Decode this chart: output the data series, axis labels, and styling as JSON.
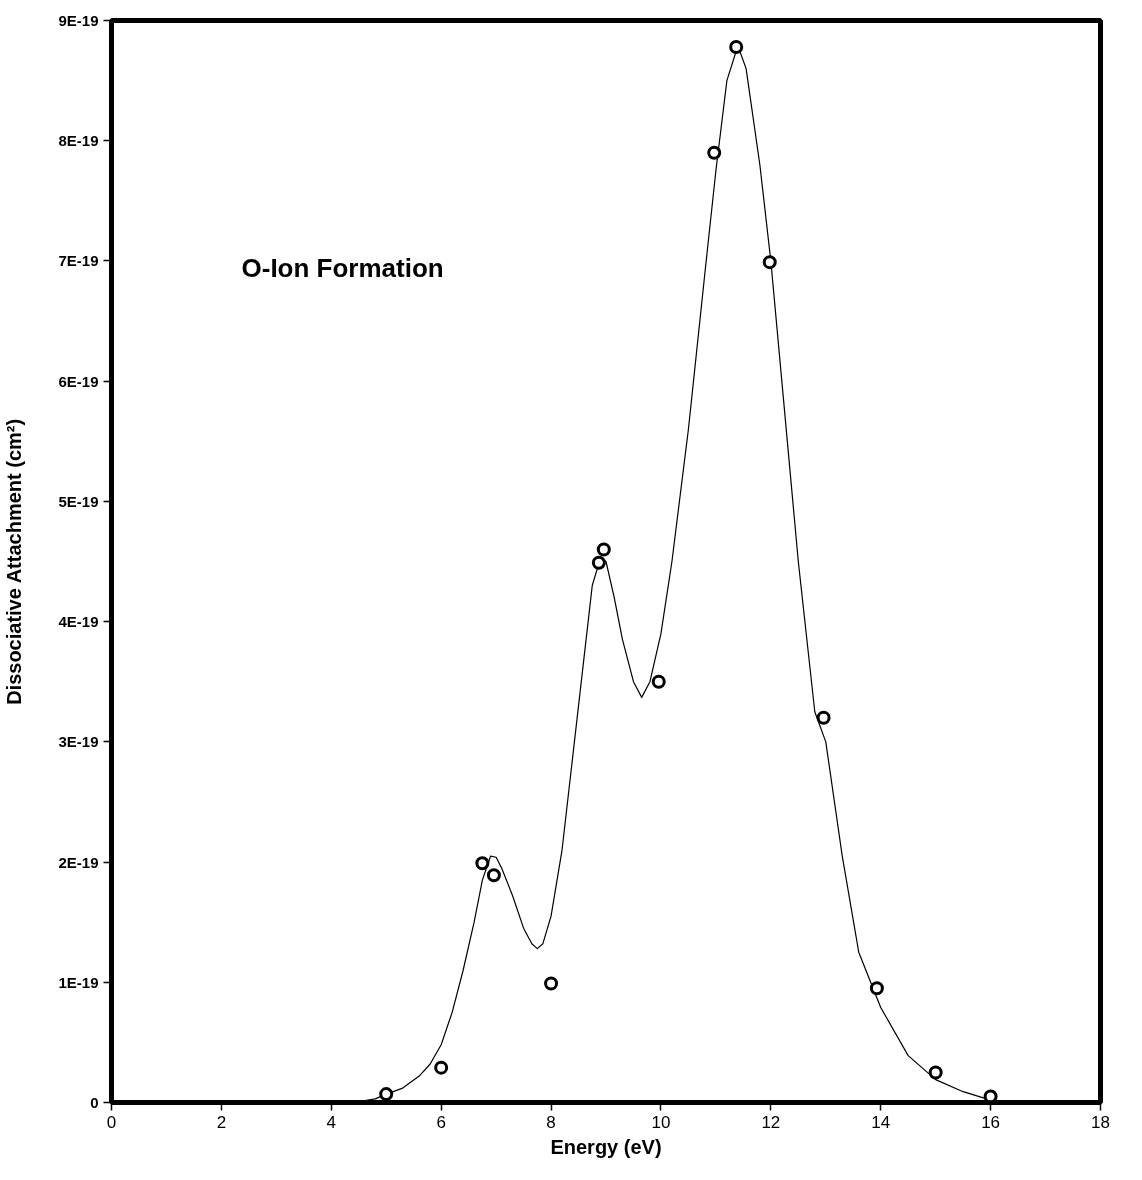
{
  "chart_data": {
    "type": "scatter",
    "xlabel": "Energy (eV)",
    "ylabel": "Dissociative Attachment (cm²)",
    "annotations": [
      "O-Ion Formation"
    ],
    "xlim": [
      0,
      18
    ],
    "xticks": [
      0,
      2,
      4,
      6,
      8,
      10,
      12,
      14,
      16,
      18
    ],
    "ylim": [
      0,
      9e-19
    ],
    "yticks": [
      {
        "value": 0,
        "label": "0"
      },
      {
        "value": 1e-19,
        "label": "1E-19"
      },
      {
        "value": 2e-19,
        "label": "2E-19"
      },
      {
        "value": 3e-19,
        "label": "3E-19"
      },
      {
        "value": 4e-19,
        "label": "4E-19"
      },
      {
        "value": 5e-19,
        "label": "5E-19"
      },
      {
        "value": 6e-19,
        "label": "6E-19"
      },
      {
        "value": 7e-19,
        "label": "7E-19"
      },
      {
        "value": 8e-19,
        "label": "8E-19"
      },
      {
        "value": 9e-19,
        "label": "9E-19"
      }
    ],
    "grid": false,
    "marker": "circle",
    "series": [
      {
        "type": "line",
        "color": "#000000",
        "marker": "none",
        "line_style": "solid",
        "x": [
          4.4,
          4.8,
          5.0,
          5.3,
          5.6,
          5.8,
          6.0,
          6.2,
          6.4,
          6.6,
          6.75,
          6.9,
          7.0,
          7.1,
          7.3,
          7.5,
          7.65,
          7.75,
          7.85,
          8.0,
          8.2,
          8.4,
          8.6,
          8.75,
          8.9,
          9.0,
          9.15,
          9.3,
          9.5,
          9.65,
          9.8,
          10.0,
          10.2,
          10.5,
          10.8,
          11.0,
          11.2,
          11.4,
          11.55,
          11.8,
          12.0,
          12.2,
          12.5,
          12.8,
          13.0,
          13.3,
          13.6,
          14.0,
          14.5,
          15.0,
          15.5,
          16.0,
          16.1
        ],
        "values": [
          0,
          3e-21,
          7e-21,
          1.2e-20,
          2.2e-20,
          3.2e-20,
          4.8e-20,
          7.5e-20,
          1.1e-19,
          1.5e-19,
          1.85e-19,
          2.05e-19,
          2.04e-19,
          1.95e-19,
          1.72e-19,
          1.45e-19,
          1.32e-19,
          1.28e-19,
          1.32e-19,
          1.55e-19,
          2.1e-19,
          2.9e-19,
          3.7e-19,
          4.3e-19,
          4.53e-19,
          4.5e-19,
          4.2e-19,
          3.85e-19,
          3.5e-19,
          3.37e-19,
          3.5e-19,
          3.9e-19,
          4.5e-19,
          5.6e-19,
          6.9e-19,
          7.75e-19,
          8.5e-19,
          8.79e-19,
          8.6e-19,
          7.8e-19,
          7e-19,
          6e-19,
          4.5e-19,
          3.25e-19,
          3e-19,
          2.05e-19,
          1.25e-19,
          7.9e-20,
          3.9e-20,
          1.9e-20,
          9e-21,
          2e-21,
          0
        ]
      },
      {
        "color": "#000000",
        "x": [
          5,
          6,
          6.75,
          6.96,
          8,
          8.87,
          8.96,
          9.96,
          10.97,
          11.37,
          11.98,
          12.96,
          13.93,
          15,
          16
        ],
        "values": [
          7e-21,
          2.9e-20,
          1.99e-19,
          1.89e-19,
          9.9e-20,
          4.49e-19,
          4.6e-19,
          3.5e-19,
          7.9e-19,
          8.78e-19,
          6.99e-19,
          3.2e-19,
          9.5e-20,
          2.5e-20,
          5e-21
        ]
      }
    ]
  }
}
